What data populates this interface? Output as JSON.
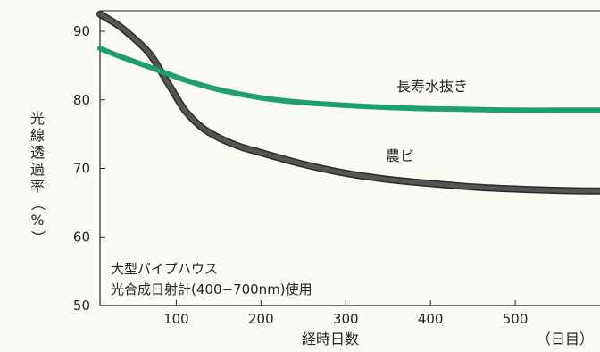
{
  "chart_data": {
    "type": "line",
    "ylabel_chars": [
      "光",
      "線",
      "透",
      "過",
      "率",
      "（",
      "%",
      "）"
    ],
    "xlabel": "経時日数",
    "xunit": "（日目）",
    "xticks": [
      100,
      200,
      300,
      400,
      500
    ],
    "yticks": [
      50,
      60,
      70,
      80,
      90
    ],
    "xlim": [
      10,
      600
    ],
    "ylim": [
      50,
      93
    ],
    "grid": false,
    "annotation": [
      "大型パイプハウス",
      "光合成日射計(400−700nm)使用"
    ],
    "series": [
      {
        "name": "長寿水抜き",
        "color": "#1f9e6e",
        "x": [
          10,
          30,
          50,
          70,
          90,
          110,
          150,
          200,
          250,
          300,
          350,
          400,
          450,
          500,
          550,
          600
        ],
        "y": [
          87.5,
          86.5,
          85.6,
          84.7,
          83.8,
          82.9,
          81.5,
          80.3,
          79.6,
          79.2,
          78.9,
          78.7,
          78.6,
          78.5,
          78.5,
          78.5
        ]
      },
      {
        "name": "農ビ",
        "color": "#555555",
        "x": [
          10,
          30,
          50,
          70,
          90,
          110,
          130,
          150,
          175,
          200,
          250,
          300,
          350,
          400,
          450,
          500,
          550,
          600
        ],
        "y": [
          92.5,
          91,
          89,
          86.5,
          82.5,
          78.5,
          76,
          74.5,
          73.2,
          72.3,
          70.6,
          69.3,
          68.4,
          67.8,
          67.3,
          67,
          66.8,
          66.7
        ]
      }
    ]
  }
}
